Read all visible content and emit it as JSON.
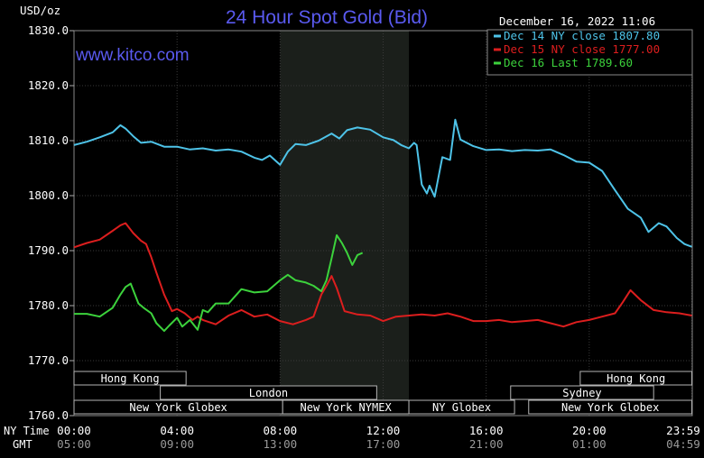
{
  "chart_data": {
    "type": "line",
    "title": "24 Hour Spot Gold (Bid)",
    "watermark": "www.kitco.com",
    "timestamp": "December 16, 2022 11:06",
    "ylabel": "USD/oz",
    "ylim": [
      1760,
      1830
    ],
    "xlim": [
      0,
      24
    ],
    "y_ticks": [
      "1830.0",
      "1820.0",
      "1810.0",
      "1800.0",
      "1790.0",
      "1780.0",
      "1770.0",
      "1760.0"
    ],
    "y_tick_values": [
      1830,
      1820,
      1810,
      1800,
      1790,
      1780,
      1770,
      1760
    ],
    "x_ticks_ny": [
      "00:00",
      "04:00",
      "08:00",
      "12:00",
      "16:00",
      "20:00",
      "23:59"
    ],
    "x_ticks_gmt": [
      "05:00",
      "09:00",
      "13:00",
      "17:00",
      "21:00",
      "01:00",
      "04:59"
    ],
    "x_tick_hours": [
      0,
      4,
      8,
      12,
      16,
      20,
      23.983
    ],
    "x_row_labels": {
      "ny": "NY Time",
      "gmt": "GMT"
    },
    "shaded_session": {
      "start": 8,
      "end": 13,
      "color": "#1b1f1b"
    },
    "grid": true,
    "legend_position": "top-right",
    "series": [
      {
        "name": "Dec 14 NY close 1807.80",
        "color": "#4ec3e8",
        "x": [
          0,
          0.5,
          1,
          1.5,
          1.8,
          2,
          2.3,
          2.6,
          3,
          3.5,
          4,
          4.5,
          5,
          5.5,
          6,
          6.5,
          7,
          7.3,
          7.6,
          8,
          8.3,
          8.6,
          9,
          9.5,
          10,
          10.3,
          10.6,
          11,
          11.5,
          12,
          12.4,
          12.7,
          13,
          13.2,
          13.3,
          13.5,
          13.7,
          13.8,
          14,
          14.3,
          14.6,
          14.8,
          15,
          15.5,
          16,
          16.5,
          17,
          17.5,
          18,
          18.5,
          19,
          19.5,
          20,
          20.5,
          21,
          21.5,
          22,
          22.3,
          22.7,
          23,
          23.4,
          23.7,
          23.983
        ],
        "values": [
          1809.2,
          1809.8,
          1810.6,
          1811.5,
          1812.8,
          1812.2,
          1810.8,
          1809.6,
          1809.8,
          1808.9,
          1808.9,
          1808.4,
          1808.6,
          1808.2,
          1808.4,
          1808.0,
          1806.9,
          1806.5,
          1807.3,
          1805.6,
          1808.0,
          1809.4,
          1809.2,
          1810.0,
          1811.3,
          1810.4,
          1811.9,
          1812.4,
          1812.0,
          1810.6,
          1810.1,
          1809.2,
          1808.6,
          1809.6,
          1809.2,
          1802.0,
          1800.4,
          1801.8,
          1799.8,
          1807.0,
          1806.5,
          1813.8,
          1810.2,
          1809.0,
          1808.3,
          1808.4,
          1808.1,
          1808.3,
          1808.2,
          1808.4,
          1807.4,
          1806.2,
          1806.0,
          1804.5,
          1801.0,
          1797.6,
          1796.0,
          1793.4,
          1795.0,
          1794.4,
          1792.3,
          1791.2,
          1790.7
        ]
      },
      {
        "name": "Dec 15 NY close 1777.00",
        "color": "#dc1e1e",
        "x": [
          0,
          0.5,
          1,
          1.5,
          1.8,
          2,
          2.3,
          2.6,
          2.8,
          3,
          3.2,
          3.5,
          3.8,
          4,
          4.3,
          4.6,
          4.8,
          5,
          5.5,
          6,
          6.5,
          7,
          7.5,
          8,
          8.5,
          9,
          9.3,
          9.6,
          9.8,
          10,
          10.2,
          10.5,
          11,
          11.5,
          12,
          12.5,
          13,
          13.5,
          14,
          14.5,
          15,
          15.5,
          16,
          16.5,
          17,
          17.5,
          18,
          18.5,
          19,
          19.5,
          20,
          20.5,
          21,
          21.3,
          21.6,
          22,
          22.5,
          23,
          23.5,
          23.983
        ],
        "values": [
          1790.6,
          1791.4,
          1792.0,
          1793.6,
          1794.6,
          1795.0,
          1793.2,
          1791.8,
          1791.2,
          1788.8,
          1786.0,
          1782.0,
          1779.0,
          1779.4,
          1778.6,
          1777.4,
          1778.0,
          1777.4,
          1776.6,
          1778.2,
          1779.2,
          1778.0,
          1778.4,
          1777.2,
          1776.6,
          1777.4,
          1778.0,
          1782.0,
          1783.6,
          1785.4,
          1783.2,
          1779.0,
          1778.4,
          1778.2,
          1777.2,
          1778.0,
          1778.2,
          1778.4,
          1778.2,
          1778.6,
          1778.0,
          1777.2,
          1777.2,
          1777.4,
          1777.0,
          1777.2,
          1777.4,
          1776.8,
          1776.2,
          1777.0,
          1777.4,
          1778.0,
          1778.6,
          1780.6,
          1782.8,
          1781.0,
          1779.2,
          1778.8,
          1778.6,
          1778.2
        ]
      },
      {
        "name": "Dec 16 Last 1789.60",
        "color": "#3cd23c",
        "x": [
          0,
          0.5,
          1,
          1.5,
          1.8,
          2,
          2.2,
          2.5,
          2.7,
          3,
          3.2,
          3.5,
          3.7,
          4,
          4.2,
          4.5,
          4.8,
          5,
          5.2,
          5.5,
          6,
          6.5,
          7,
          7.5,
          8,
          8.3,
          8.6,
          9,
          9.3,
          9.6,
          9.8,
          10,
          10.2,
          10.4,
          10.6,
          10.8,
          11,
          11.2
        ],
        "values": [
          1778.5,
          1778.5,
          1778.0,
          1779.6,
          1782.0,
          1783.4,
          1784.0,
          1780.4,
          1779.6,
          1778.6,
          1776.8,
          1775.4,
          1776.4,
          1777.8,
          1776.2,
          1777.4,
          1775.6,
          1779.2,
          1778.8,
          1780.4,
          1780.4,
          1783.0,
          1782.4,
          1782.6,
          1784.6,
          1785.6,
          1784.6,
          1784.2,
          1783.6,
          1782.6,
          1784.6,
          1788.6,
          1792.8,
          1791.4,
          1789.6,
          1787.4,
          1789.2,
          1789.6
        ]
      }
    ],
    "sessions": [
      {
        "label": "Hong Kong",
        "start": 0,
        "end": 4.35,
        "row": 0
      },
      {
        "label": "Hong Kong",
        "start": 19.65,
        "end": 23.983,
        "row": 0
      },
      {
        "label": "London",
        "start": 3.35,
        "end": 11.75,
        "row": 1
      },
      {
        "label": "Sydney",
        "start": 16.95,
        "end": 22.5,
        "row": 1
      },
      {
        "label": "New York Globex",
        "start": 0,
        "end": 8.1,
        "row": 2
      },
      {
        "label": "New York NYMEX",
        "start": 8.1,
        "end": 13.0,
        "row": 2
      },
      {
        "label": "NY Globex",
        "start": 13.0,
        "end": 17.1,
        "row": 2
      },
      {
        "label": "New York Globex",
        "start": 17.65,
        "end": 23.983,
        "row": 2
      }
    ]
  }
}
